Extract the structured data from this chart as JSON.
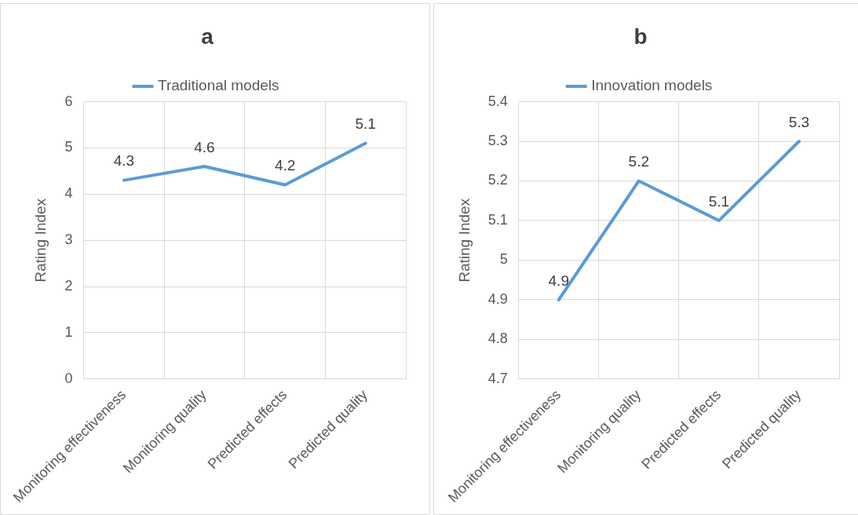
{
  "chart_data": [
    {
      "type": "line",
      "title": "a",
      "ylabel": "Rating Index",
      "categories": [
        "Monitoring effectiveness",
        "Monitoring quality",
        "Predicted effects",
        "Predicted quality"
      ],
      "series": [
        {
          "name": "Traditional models",
          "color": "#5b9bd5",
          "values": [
            4.3,
            4.6,
            4.2,
            5.1
          ]
        }
      ],
      "ylim": [
        0,
        6
      ],
      "yticks": [
        0,
        1,
        2,
        3,
        4,
        5,
        6
      ],
      "grid": true,
      "legend": "top",
      "data_labels": true,
      "marker": "none"
    },
    {
      "type": "line",
      "title": "b",
      "ylabel": "Rating Index",
      "categories": [
        "Monitoring effectiveness",
        "Monitoring quality",
        "Predicted effects",
        "Predicted quality"
      ],
      "series": [
        {
          "name": "Innovation models",
          "color": "#5b9bd5",
          "values": [
            4.9,
            5.2,
            5.1,
            5.3
          ]
        }
      ],
      "ylim": [
        4.7,
        5.4
      ],
      "yticks": [
        4.7,
        4.8,
        4.9,
        5,
        5.1,
        5.2,
        5.3,
        5.4
      ],
      "grid": true,
      "legend": "top",
      "data_labels": true,
      "marker": "none"
    }
  ]
}
